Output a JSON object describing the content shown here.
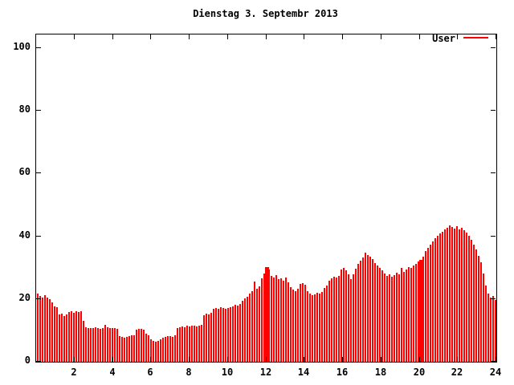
{
  "title": "Dienstag 3. Septembr 2013",
  "legend": {
    "label": "User",
    "line_color": "#ff0000"
  },
  "chart_data": {
    "type": "bar",
    "style": "impulses",
    "title": "Dienstag 3. Septembr 2013",
    "xlabel": "",
    "ylabel": "",
    "xlim": [
      0,
      24
    ],
    "ylim": [
      0,
      104
    ],
    "xticks": [
      2,
      4,
      6,
      8,
      10,
      12,
      14,
      16,
      18,
      20,
      22,
      24
    ],
    "yticks": [
      0,
      20,
      40,
      60,
      80,
      100
    ],
    "grid": false,
    "legend_position": "top-right",
    "bar_color": "#ff0000",
    "axis_color": "#000000",
    "background_color": "#ffffff",
    "series": [
      {
        "name": "User",
        "color": "#ff0000",
        "start_hour": 0,
        "interval_hours": 0.125,
        "values": [
          21.8,
          21.0,
          20.5,
          21.1,
          20.5,
          20.0,
          18.8,
          17.6,
          17.4,
          15.0,
          15.4,
          14.6,
          15.0,
          15.8,
          16.0,
          15.5,
          16.0,
          15.8,
          16.1,
          13.0,
          11.0,
          10.7,
          10.7,
          10.7,
          11.0,
          10.7,
          10.5,
          10.7,
          11.8,
          11.0,
          10.7,
          10.7,
          10.7,
          10.5,
          8.2,
          7.9,
          7.7,
          7.9,
          8.2,
          8.4,
          8.4,
          10.2,
          10.5,
          10.5,
          10.2,
          9.0,
          8.4,
          7.2,
          6.6,
          6.4,
          6.6,
          7.2,
          7.7,
          8.0,
          8.2,
          8.2,
          7.9,
          8.4,
          10.8,
          11.0,
          11.3,
          11.0,
          11.5,
          11.3,
          11.5,
          11.5,
          11.3,
          11.5,
          11.8,
          14.8,
          15.3,
          15.1,
          15.6,
          16.9,
          17.1,
          16.9,
          17.4,
          17.1,
          16.9,
          17.1,
          17.4,
          17.6,
          18.2,
          17.9,
          18.4,
          19.4,
          20.2,
          20.7,
          21.7,
          22.5,
          25.6,
          23.3,
          24.0,
          26.6,
          28.2,
          30.2,
          29.4,
          27.4,
          26.9,
          27.7,
          26.4,
          26.6,
          25.8,
          26.9,
          25.3,
          23.8,
          23.0,
          22.5,
          23.3,
          24.8,
          25.1,
          24.6,
          22.5,
          21.7,
          21.2,
          21.5,
          22.0,
          21.7,
          22.2,
          23.5,
          24.3,
          25.8,
          26.6,
          27.1,
          26.9,
          27.4,
          29.4,
          30.0,
          29.2,
          27.9,
          26.4,
          27.9,
          29.6,
          31.2,
          32.2,
          33.3,
          34.8,
          34.1,
          33.5,
          32.7,
          31.5,
          30.7,
          29.9,
          29.2,
          28.1,
          27.4,
          27.9,
          27.1,
          27.7,
          28.4,
          27.9,
          29.9,
          28.6,
          29.4,
          30.2,
          30.0,
          30.7,
          31.2,
          32.0,
          32.5,
          33.5,
          35.3,
          36.3,
          37.3,
          38.4,
          39.4,
          40.2,
          40.9,
          41.4,
          42.2,
          42.7,
          43.5,
          42.9,
          42.4,
          43.2,
          42.2,
          42.7,
          41.9,
          41.2,
          40.2,
          38.9,
          37.3,
          35.8,
          33.8,
          31.7,
          28.1,
          24.3,
          21.7,
          20.5,
          21.0,
          19.7
        ]
      }
    ],
    "wide_bar_indices": [
      95,
      159
    ]
  }
}
